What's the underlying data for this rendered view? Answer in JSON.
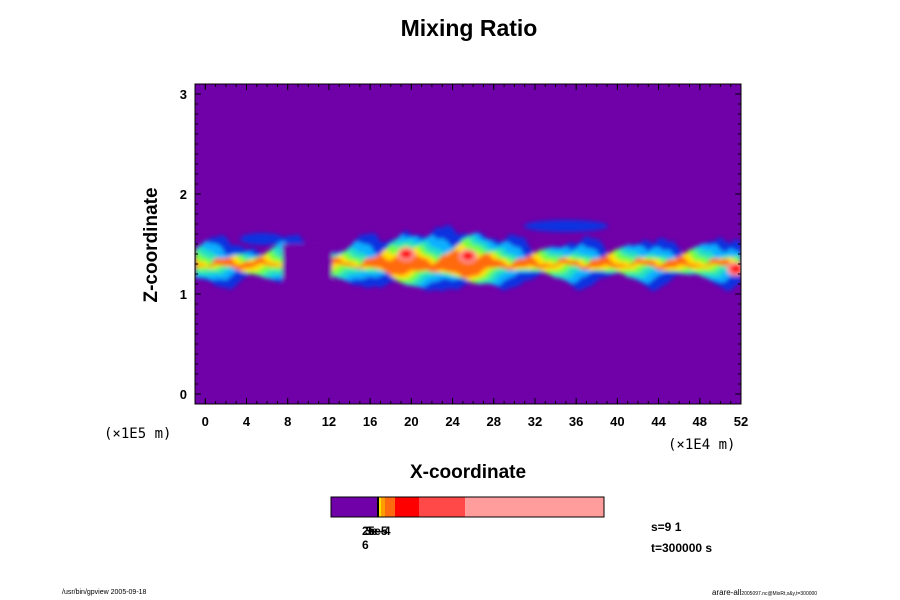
{
  "chart_data": {
    "type": "heatmap",
    "title": "Mixing Ratio",
    "xlabel": "X-coordinate",
    "ylabel": "Z-coordinate",
    "x_scale_note": "(×1E4 m)",
    "y_scale_note": "(×1E5 m)",
    "x_ticks": [
      "0",
      "4",
      "8",
      "12",
      "16",
      "20",
      "24",
      "28",
      "32",
      "36",
      "40",
      "44",
      "48",
      "52"
    ],
    "y_ticks": [
      "0",
      "1",
      "2",
      "3"
    ],
    "xlim": [
      -1,
      52
    ],
    "ylim": [
      -0.1,
      3.1
    ],
    "background_color": "#7000a8",
    "colorbar": {
      "colors": [
        "#7000a8",
        "#ffe000",
        "#ff9c00",
        "#ff6a10",
        "#ff0000",
        "#ff4848",
        "#ff9c9c"
      ],
      "tick_labels_overlapping": [
        "2e-6",
        "3e-5",
        "5e-4"
      ]
    },
    "features": [
      {
        "name": "main-band",
        "z_center": 1.3,
        "z_extent": [
          1.1,
          1.45
        ],
        "x_extent": [
          -1,
          52
        ],
        "max_color": "#ff0000"
      },
      {
        "name": "left-patch",
        "x_center": 5.5,
        "z_center": 1.55,
        "color": "#1030e0"
      },
      {
        "name": "right-upper-patch",
        "x_center": 35,
        "z_center": 1.68,
        "color": "#1030e0"
      },
      {
        "name": "hotspot-1",
        "x_center": 19.5,
        "z_center": 1.4,
        "color": "#ff0000"
      },
      {
        "name": "hotspot-2",
        "x_center": 25.5,
        "z_center": 1.38,
        "color": "#ff0000"
      },
      {
        "name": "hotspot-3",
        "x_center": 51.5,
        "z_center": 1.25,
        "color": "#ff0000"
      }
    ]
  },
  "info": {
    "step": "s=9 1",
    "time": "t=300000 s"
  },
  "footer": {
    "left": "/usr/bin/gpview 2005-09-18",
    "right_main": "arare-all",
    "right_sub": "2005097.nc@MixRt,x&y,t=300000"
  }
}
